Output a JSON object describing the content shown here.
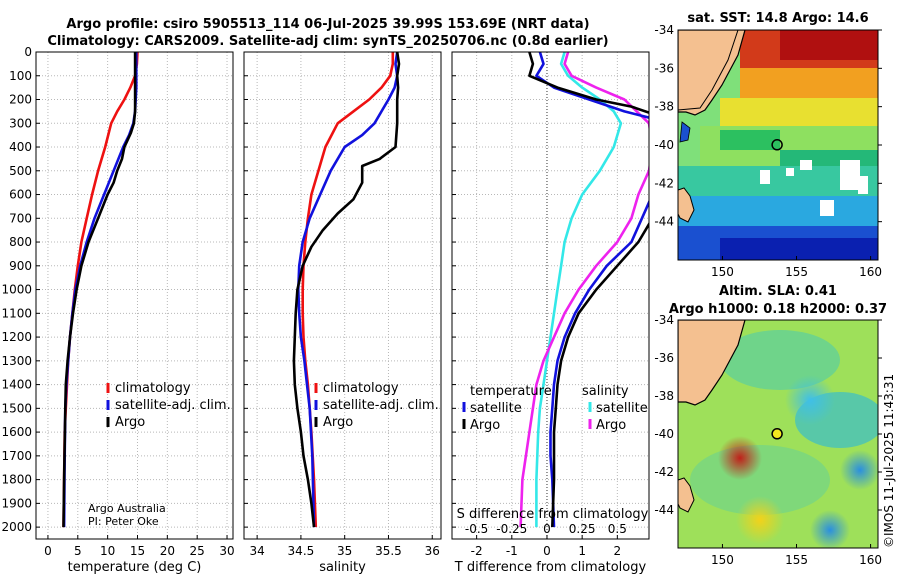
{
  "title_line1": "Argo profile: csiro 5905513_114 06-Jul-2025 39.99S 153.69E (NRT data)",
  "title_line2": "Climatology: CARS2009. Satellite-adj clim: synTS_20250706.nc (0.8d earlier)",
  "credit_line1": "Argo Australia",
  "credit_line2": "PI: Peter Oke",
  "timestamp": "©IMOS 11-Jul-2025 11:43:31",
  "colors": {
    "climatology": "#ee1111",
    "satellite": "#1111dd",
    "argo": "#000000",
    "sat_t": "#33e8e8",
    "sat_s": "#ee22ee"
  },
  "chart_data": [
    {
      "type": "line",
      "name": "temperature",
      "xlabel": "temperature (deg C)",
      "xlim": [
        -2,
        31
      ],
      "xticks": [
        "0",
        "5",
        "10",
        "15",
        "20",
        "25",
        "30"
      ],
      "xtick_values": [
        0,
        5,
        10,
        15,
        20,
        25,
        30
      ],
      "ylim": [
        0,
        2050
      ],
      "yticks": [
        "0",
        "100",
        "200",
        "300",
        "400",
        "500",
        "600",
        "700",
        "800",
        "900",
        "1000",
        "1100",
        "1200",
        "1300",
        "1400",
        "1500",
        "1600",
        "1700",
        "1800",
        "1900",
        "2000"
      ],
      "ytick_values": [
        0,
        100,
        200,
        300,
        400,
        500,
        600,
        700,
        800,
        900,
        1000,
        1100,
        1200,
        1300,
        1400,
        1500,
        1600,
        1700,
        1800,
        1900,
        2000
      ],
      "legend": [
        "climatology",
        "satellite-adj. clim.",
        "Argo"
      ],
      "series": [
        {
          "name": "climatology",
          "x": [
            15.0,
            14.9,
            14.6,
            13.8,
            12.8,
            11.6,
            10.6,
            9.6,
            8.4,
            7.4,
            6.5,
            5.6,
            5.0,
            4.5,
            4.1,
            3.7,
            3.4,
            3.2,
            3.0,
            2.8,
            2.7,
            2.6
          ],
          "y": [
            0,
            50,
            100,
            150,
            200,
            250,
            300,
            400,
            500,
            600,
            700,
            800,
            900,
            1000,
            1100,
            1200,
            1300,
            1400,
            1500,
            1600,
            1800,
            2000
          ]
        },
        {
          "name": "satellite-adj. clim.",
          "x": [
            14.8,
            14.8,
            14.8,
            14.8,
            14.7,
            14.6,
            14.3,
            13.6,
            12.6,
            11.0,
            9.4,
            7.8,
            6.5,
            5.4,
            4.6,
            4.1,
            3.7,
            3.4,
            3.1,
            2.9,
            2.8,
            2.7
          ],
          "y": [
            0,
            50,
            100,
            150,
            200,
            250,
            300,
            350,
            400,
            500,
            600,
            700,
            800,
            900,
            1000,
            1100,
            1200,
            1300,
            1400,
            1500,
            1700,
            2000
          ]
        },
        {
          "name": "Argo",
          "x": [
            14.6,
            14.6,
            14.6,
            14.6,
            14.6,
            14.6,
            14.4,
            13.9,
            12.8,
            12.4,
            11.6,
            11.0,
            10.0,
            8.4,
            6.8,
            5.6,
            4.8,
            4.2,
            3.7,
            3.3,
            3.0,
            2.9,
            2.7,
            2.6
          ],
          "y": [
            0,
            50,
            100,
            150,
            200,
            250,
            300,
            340,
            400,
            450,
            500,
            550,
            600,
            700,
            800,
            900,
            1000,
            1100,
            1200,
            1300,
            1400,
            1500,
            1800,
            2000
          ]
        }
      ]
    },
    {
      "type": "line",
      "name": "salinity",
      "xlabel": "salinity",
      "xlim": [
        33.85,
        36.1
      ],
      "xticks": [
        "34",
        "34.5",
        "35",
        "35.5",
        "36"
      ],
      "xtick_values": [
        34,
        34.5,
        35,
        35.5,
        36
      ],
      "ylim": [
        0,
        2050
      ],
      "legend": [
        "climatology",
        "satellite-adj. clim.",
        "Argo"
      ],
      "series": [
        {
          "name": "climatology",
          "x": [
            35.55,
            35.55,
            35.52,
            35.42,
            35.28,
            35.1,
            34.92,
            34.78,
            34.7,
            34.62,
            34.58,
            34.55,
            34.53,
            34.52,
            34.52,
            34.53,
            34.55,
            34.58,
            34.6,
            34.62,
            34.65,
            34.67
          ],
          "y": [
            0,
            50,
            100,
            150,
            200,
            250,
            300,
            400,
            500,
            600,
            700,
            800,
            900,
            1000,
            1100,
            1200,
            1300,
            1400,
            1500,
            1600,
            1800,
            2000
          ]
        },
        {
          "name": "satellite-adj. clim.",
          "x": [
            35.6,
            35.58,
            35.6,
            35.57,
            35.5,
            35.42,
            35.34,
            35.2,
            35.0,
            34.84,
            34.72,
            34.6,
            34.52,
            34.48,
            34.47,
            34.48,
            34.5,
            34.54,
            34.57,
            34.6,
            34.63,
            34.65
          ],
          "y": [
            0,
            50,
            100,
            150,
            200,
            250,
            300,
            350,
            400,
            500,
            600,
            700,
            800,
            900,
            1000,
            1100,
            1200,
            1300,
            1400,
            1500,
            1700,
            2000
          ]
        },
        {
          "name": "Argo",
          "x": [
            35.6,
            35.62,
            35.6,
            35.61,
            35.6,
            35.6,
            35.6,
            35.58,
            35.4,
            35.2,
            35.2,
            35.1,
            34.92,
            34.75,
            34.62,
            34.52,
            34.46,
            34.44,
            34.43,
            34.42,
            34.43,
            34.46,
            34.5,
            34.53,
            34.58,
            34.62,
            34.65
          ],
          "y": [
            0,
            50,
            100,
            150,
            200,
            250,
            300,
            400,
            450,
            480,
            550,
            620,
            680,
            750,
            820,
            900,
            1000,
            1100,
            1200,
            1300,
            1400,
            1500,
            1600,
            1700,
            1800,
            1900,
            2000
          ]
        }
      ]
    },
    {
      "type": "line",
      "name": "differences",
      "xlabel": "T difference from climatology",
      "xlabel_top": "S difference from climatology",
      "xlim": [
        -2.7,
        2.9
      ],
      "xticks": [
        "-2",
        "-1",
        "0",
        "1",
        "2"
      ],
      "xtick_values": [
        -2,
        -1,
        0,
        1,
        2
      ],
      "xticks_s": [
        "-0.5",
        "-0.25",
        "0",
        "0.25",
        "0.5"
      ],
      "ylim": [
        0,
        2050
      ],
      "legend_headers": [
        "temperature",
        "salinity"
      ],
      "legend_t": [
        "satellite",
        "Argo"
      ],
      "legend_s": [
        "satellite",
        "Argo"
      ],
      "series": [
        {
          "name": "temperature satellite",
          "x": [
            -0.2,
            -0.1,
            -0.3,
            0.2,
            1.2,
            2.2,
            3.0,
            3.0,
            3.0,
            3.0,
            2.4,
            1.7,
            1.2,
            0.8,
            0.5,
            0.3,
            0.2,
            0.15,
            0.1,
            0.1,
            0.15,
            0.2
          ],
          "y": [
            0,
            50,
            100,
            150,
            200,
            250,
            280,
            400,
            500,
            600,
            800,
            900,
            1000,
            1100,
            1200,
            1300,
            1400,
            1500,
            1600,
            1700,
            1800,
            2000
          ]
        },
        {
          "name": "temperature Argo",
          "x": [
            -0.5,
            -0.4,
            -0.5,
            0.3,
            1.4,
            2.4,
            3.0,
            3.0,
            3.0,
            3.0,
            2.6,
            2.0,
            1.4,
            0.9,
            0.6,
            0.4,
            0.3,
            0.25,
            0.2,
            0.2,
            0.2,
            0.15
          ],
          "y": [
            0,
            50,
            100,
            150,
            200,
            230,
            260,
            400,
            500,
            700,
            800,
            900,
            1000,
            1100,
            1200,
            1300,
            1400,
            1500,
            1600,
            1700,
            1800,
            2000
          ]
        },
        {
          "name": "salinity satellite",
          "x": [
            0.5,
            0.4,
            0.6,
            1.0,
            1.5,
            1.9,
            2.1,
            1.9,
            1.5,
            1.0,
            0.7,
            0.5,
            0.4,
            0.3,
            0.2,
            0.1,
            0.0,
            -0.1,
            -0.2,
            -0.25,
            -0.3,
            -0.3
          ],
          "y": [
            0,
            50,
            100,
            150,
            200,
            250,
            300,
            400,
            500,
            600,
            700,
            800,
            900,
            1000,
            1100,
            1200,
            1300,
            1400,
            1500,
            1600,
            1800,
            2000
          ]
        },
        {
          "name": "salinity Argo",
          "x": [
            0.6,
            0.5,
            0.7,
            1.4,
            2.2,
            2.9,
            3.0,
            2.9,
            2.6,
            2.4,
            2.0,
            1.4,
            0.9,
            0.5,
            0.2,
            -0.1,
            -0.3,
            -0.4,
            -0.5,
            -0.6,
            -0.7,
            -0.75
          ],
          "y": [
            0,
            50,
            100,
            150,
            200,
            300,
            400,
            500,
            600,
            700,
            800,
            900,
            1000,
            1100,
            1200,
            1300,
            1400,
            1500,
            1600,
            1700,
            1800,
            2000
          ]
        }
      ]
    },
    {
      "type": "heatmap",
      "name": "sst_map",
      "title": "sat. SST: 14.8 Argo: 14.6",
      "xlim": [
        147,
        160.5
      ],
      "ylim": [
        -46,
        -34
      ],
      "xticks": [
        "150",
        "155",
        "160"
      ],
      "xtick_values": [
        150,
        155,
        160
      ],
      "yticks": [
        "-34",
        "-36",
        "-38",
        "-40",
        "-42",
        "-44"
      ],
      "ytick_values": [
        -34,
        -36,
        -38,
        -40,
        -42,
        -44
      ],
      "argo_lon": 153.69,
      "argo_lat": -39.99
    },
    {
      "type": "heatmap",
      "name": "sla_map",
      "title_line1": "Altim. SLA: 0.41",
      "title_line2": "Argo h1000: 0.18 h2000: 0.37",
      "xlim": [
        147,
        160.5
      ],
      "ylim": [
        -46,
        -34
      ],
      "xticks": [
        "150",
        "155",
        "160"
      ],
      "xtick_values": [
        150,
        155,
        160
      ],
      "yticks": [
        "-34",
        "-36",
        "-38",
        "-40",
        "-42",
        "-44"
      ],
      "ytick_values": [
        -34,
        -36,
        -38,
        -40,
        -42,
        -44
      ],
      "argo_lon": 153.69,
      "argo_lat": -39.99
    }
  ]
}
